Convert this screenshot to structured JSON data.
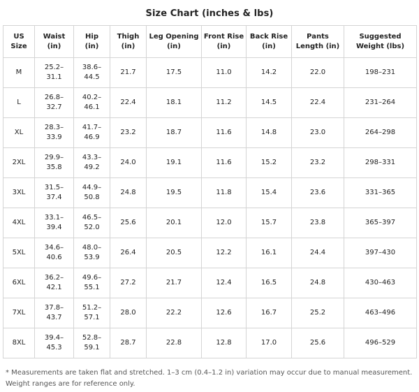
{
  "title": "Size Chart (inches & lbs)",
  "columns": [
    "US\nSize",
    "Waist\n(in)",
    "Hip\n(in)",
    "Thigh\n(in)",
    "Leg Opening\n(in)",
    "Front Rise\n(in)",
    "Back Rise\n(in)",
    "Pants\nLength (in)",
    "Suggested\nWeight (lbs)"
  ],
  "rows": [
    [
      "M",
      "25.2–\n31.1",
      "38.6–\n44.5",
      "21.7",
      "17.5",
      "11.0",
      "14.2",
      "22.0",
      "198–231"
    ],
    [
      "L",
      "26.8–\n32.7",
      "40.2–\n46.1",
      "22.4",
      "18.1",
      "11.2",
      "14.5",
      "22.4",
      "231–264"
    ],
    [
      "XL",
      "28.3–\n33.9",
      "41.7–\n46.9",
      "23.2",
      "18.7",
      "11.6",
      "14.8",
      "23.0",
      "264–298"
    ],
    [
      "2XL",
      "29.9–\n35.8",
      "43.3–\n49.2",
      "24.0",
      "19.1",
      "11.6",
      "15.2",
      "23.2",
      "298–331"
    ],
    [
      "3XL",
      "31.5–\n37.4",
      "44.9–\n50.8",
      "24.8",
      "19.5",
      "11.8",
      "15.4",
      "23.6",
      "331–365"
    ],
    [
      "4XL",
      "33.1–\n39.4",
      "46.5–\n52.0",
      "25.6",
      "20.1",
      "12.0",
      "15.7",
      "23.8",
      "365–397"
    ],
    [
      "5XL",
      "34.6–\n40.6",
      "48.0–\n53.9",
      "26.4",
      "20.5",
      "12.2",
      "16.1",
      "24.4",
      "397–430"
    ],
    [
      "6XL",
      "36.2–\n42.1",
      "49.6–\n55.1",
      "27.2",
      "21.7",
      "12.4",
      "16.5",
      "24.8",
      "430–463"
    ],
    [
      "7XL",
      "37.8–\n43.7",
      "51.2–\n57.1",
      "28.0",
      "22.2",
      "12.6",
      "16.7",
      "25.2",
      "463–496"
    ],
    [
      "8XL",
      "39.4–\n45.3",
      "52.8–\n59.1",
      "28.7",
      "22.8",
      "12.8",
      "17.0",
      "25.6",
      "496–529"
    ]
  ],
  "note": "* Measurements are taken flat and stretched. 1–3 cm (0.4–1.2 in) variation may occur due to manual measurement. Weight ranges are for reference only."
}
